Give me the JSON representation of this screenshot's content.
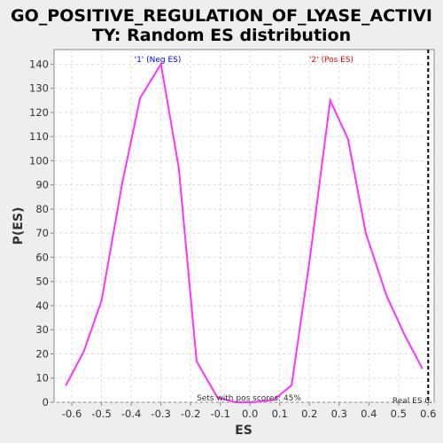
{
  "chart_data": {
    "type": "line",
    "title_line1": "GO_POSITIVE_REGULATION_OF_LYASE_ACTIVI",
    "title_line2": "TY: Random ES distribution",
    "xlabel": "ES",
    "ylabel": "P(ES)",
    "xlim": [
      -0.66,
      0.62
    ],
    "ylim": [
      0,
      146
    ],
    "xticks": [
      -0.6,
      -0.5,
      -0.4,
      -0.3,
      -0.2,
      -0.1,
      0.0,
      0.1,
      0.2,
      0.3,
      0.4,
      0.5,
      0.6
    ],
    "xtick_labels": [
      "-0.6",
      "-0.5",
      "-0.4",
      "-0.3",
      "-0.2",
      "-0.1",
      "0.0",
      "0.1",
      "0.2",
      "0.3",
      "0.4",
      "0.5",
      "0.6"
    ],
    "yticks": [
      0,
      10,
      20,
      30,
      40,
      50,
      60,
      70,
      80,
      90,
      100,
      110,
      120,
      130,
      140
    ],
    "ytick_labels": [
      "0",
      "10",
      "20",
      "30",
      "40",
      "50",
      "60",
      "70",
      "80",
      "90",
      "100",
      "110",
      "120",
      "130",
      "140"
    ],
    "grid": true,
    "line_color": "#ff33ff",
    "series": [
      {
        "x": [
          -0.62,
          -0.56,
          -0.5,
          -0.43,
          -0.37,
          -0.3,
          -0.24,
          -0.18,
          -0.11,
          -0.05,
          0.01,
          0.08,
          0.14,
          0.2,
          0.27,
          0.33,
          0.39,
          0.46,
          0.52,
          0.58
        ],
        "y": [
          7,
          21,
          42,
          91,
          126,
          140,
          97,
          17,
          2,
          0,
          0,
          1,
          7,
          58,
          125,
          109,
          70,
          44,
          28,
          14
        ]
      }
    ],
    "annotations": {
      "neg_label": "'1' (Neg ES)",
      "neg_color": "#0000ff",
      "pos_label": "'2' (Pos ES)",
      "pos_color": "#ff0000",
      "sets_pos": "Sets with pos scores: 45%",
      "real_es_label": "Real ES 0.",
      "real_es_x": 0.6
    }
  }
}
